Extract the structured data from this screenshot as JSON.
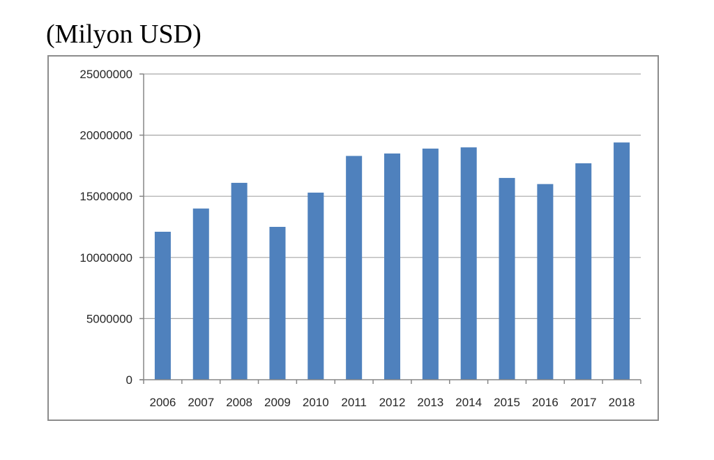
{
  "page": {
    "unit_title": "(Milyon USD)"
  },
  "chart_data": {
    "type": "bar",
    "title": "",
    "xlabel": "",
    "ylabel": "",
    "categories": [
      "2006",
      "2007",
      "2008",
      "2009",
      "2010",
      "2011",
      "2012",
      "2013",
      "2014",
      "2015",
      "2016",
      "2017",
      "2018"
    ],
    "series": [
      {
        "values": [
          12100000,
          14000000,
          16100000,
          12500000,
          15300000,
          18300000,
          18500000,
          18900000,
          19000000,
          16500000,
          16000000,
          17700000,
          19400000
        ]
      }
    ],
    "ylim": [
      0,
      25000000
    ],
    "yticks": [
      0,
      5000000,
      10000000,
      15000000,
      20000000,
      25000000
    ],
    "ytick_labels": [
      "0",
      "5000000",
      "10000000",
      "15000000",
      "20000000",
      "25000000"
    ],
    "grid": true,
    "legend": "none",
    "colors": {
      "bar": "#4f81bd",
      "grid": "#a6a6a6",
      "axis": "#868686"
    }
  }
}
